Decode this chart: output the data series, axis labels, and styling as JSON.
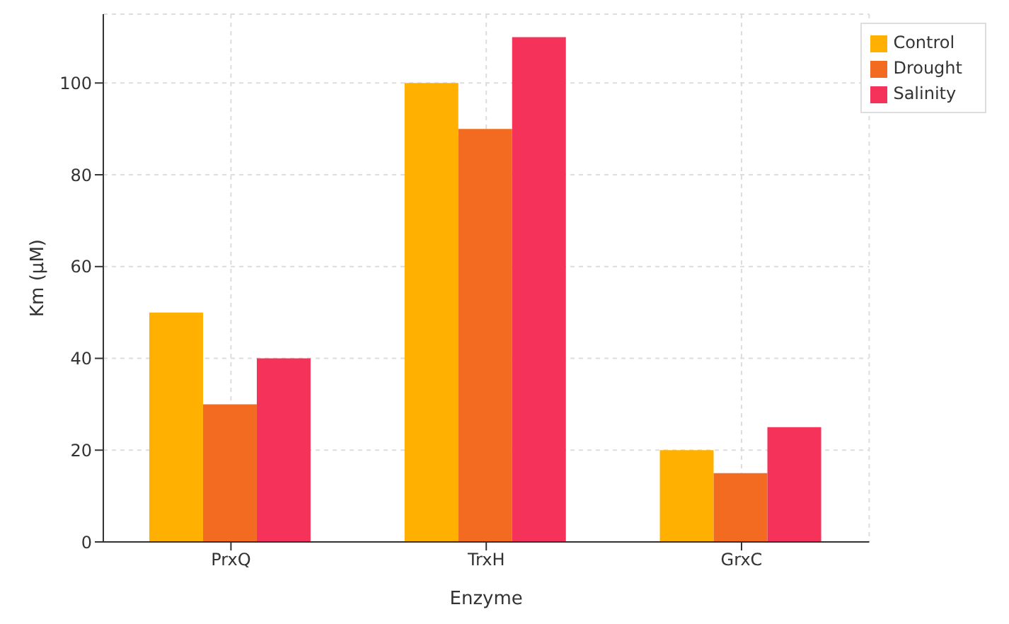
{
  "chart_data": {
    "type": "bar",
    "xlabel": "Enzyme",
    "ylabel": "Km (μM)",
    "categories": [
      "PrxQ",
      "TrxH",
      "GrxC"
    ],
    "series": [
      {
        "name": "Control",
        "color": "#ffb000",
        "values": [
          50,
          100,
          20
        ]
      },
      {
        "name": "Drought",
        "color": "#f26b21",
        "values": [
          30,
          90,
          15
        ]
      },
      {
        "name": "Salinity",
        "color": "#f5335a",
        "values": [
          40,
          110,
          25
        ]
      }
    ],
    "ylim": [
      0,
      115
    ],
    "yticks": [
      0,
      20,
      40,
      60,
      80,
      100
    ],
    "grid": true,
    "legend": "top right"
  }
}
